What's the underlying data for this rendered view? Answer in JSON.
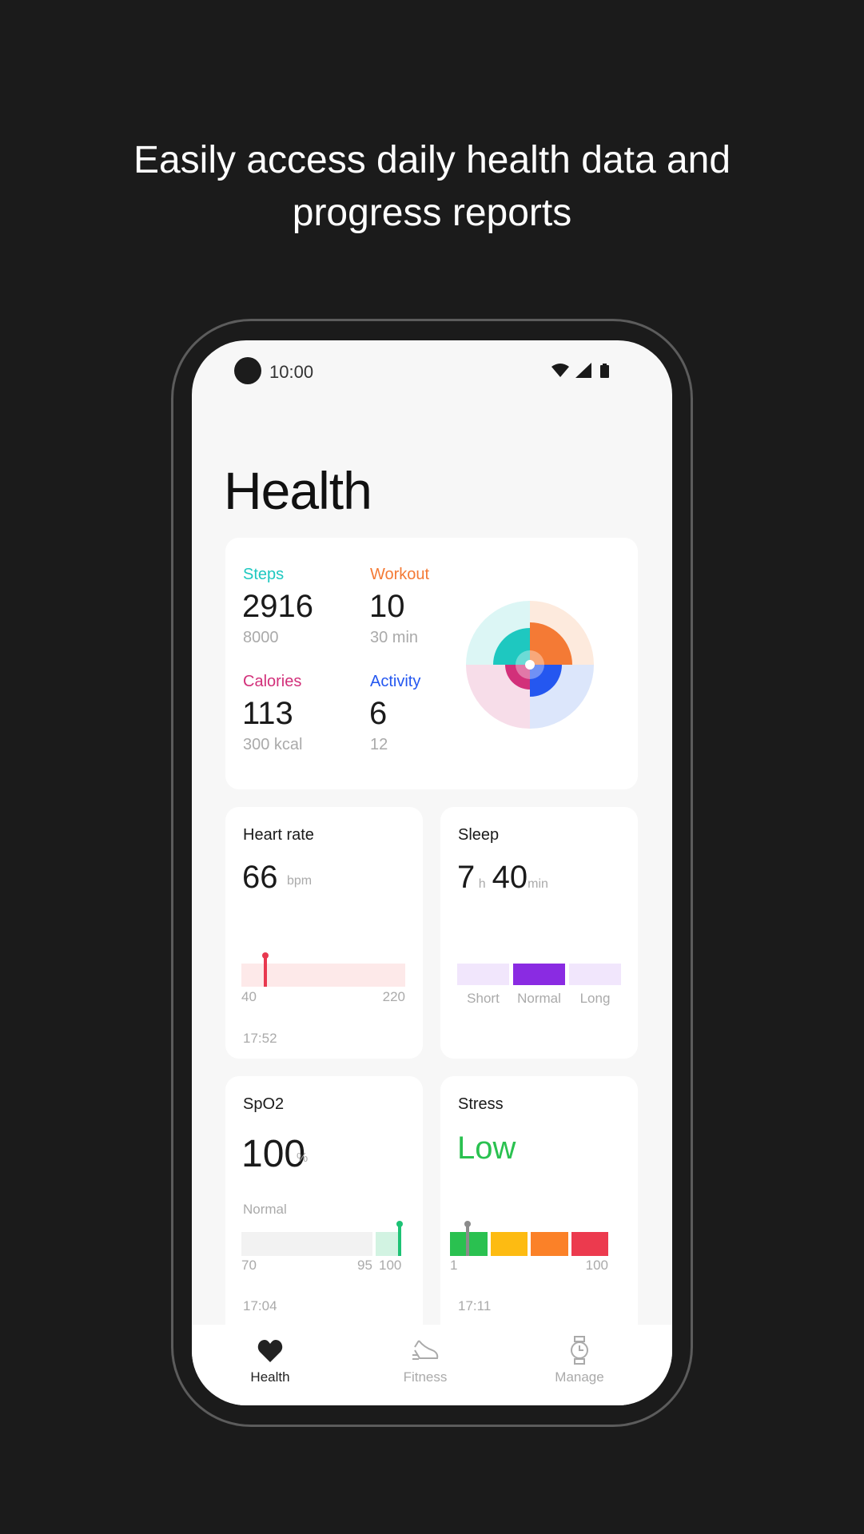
{
  "headline": {
    "line1": "Easily access daily health data and",
    "line2": "progress reports"
  },
  "status_bar": {
    "time": "10:00",
    "icons": [
      "wifi-icon",
      "signal-icon",
      "battery-icon"
    ]
  },
  "page_title": "Health",
  "summary": {
    "steps": {
      "label": "Steps",
      "value": "2916",
      "goal": "8000",
      "color": "#1ec8c0"
    },
    "workout": {
      "label": "Workout",
      "value": "10",
      "goal": "30 min",
      "color": "#f47a35"
    },
    "calories": {
      "label": "Calories",
      "value": "113",
      "goal": "300 kcal",
      "color": "#d2307a"
    },
    "activity": {
      "label": "Activity",
      "value": "6",
      "goal": "12",
      "color": "#2457f0"
    }
  },
  "heart_rate": {
    "title": "Heart rate",
    "value": "66",
    "unit": "bpm",
    "min": "40",
    "max": "220",
    "reading": 66,
    "time": "17:52",
    "color": "#e8384f"
  },
  "sleep": {
    "title": "Sleep",
    "hours": "7",
    "hours_unit": "h",
    "minutes": "40",
    "minutes_unit": "min",
    "segments": [
      "Short",
      "Normal",
      "Long"
    ],
    "active": "Normal",
    "color": "#8a2be2"
  },
  "spo2": {
    "title": "SpO2",
    "value": "100",
    "unit": "%",
    "status": "Normal",
    "min": "70",
    "mid": "95",
    "max": "100",
    "reading": 100,
    "time": "17:04",
    "color": "#1dc275"
  },
  "stress": {
    "title": "Stress",
    "value": "Low",
    "min": "1",
    "max": "100",
    "reading": 12,
    "time": "17:11",
    "colors": [
      "#2ac150",
      "#fdbb12",
      "#fb8128",
      "#ec3a4e"
    ]
  },
  "nav": [
    {
      "label": "Health",
      "icon": "heart-icon",
      "active": true
    },
    {
      "label": "Fitness",
      "icon": "sneaker-icon",
      "active": false
    },
    {
      "label": "Manage",
      "icon": "watch-icon",
      "active": false
    }
  ]
}
